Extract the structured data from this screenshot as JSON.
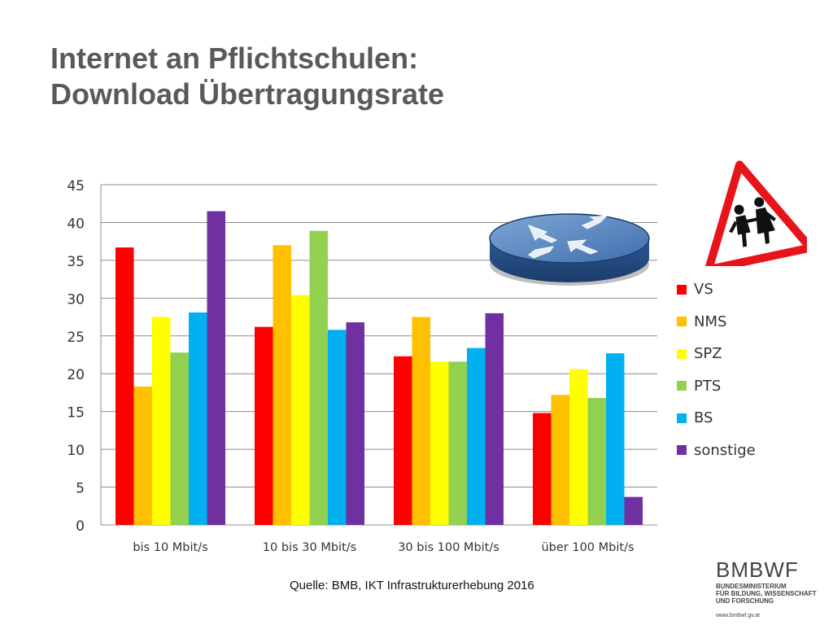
{
  "title": {
    "line1": "Internet an Pflichtschulen:",
    "line2": "Download Übertragungsrate"
  },
  "chart_data": {
    "type": "bar",
    "categories": [
      "bis 10 Mbit/s",
      "10 bis 30 Mbit/s",
      "30 bis 100 Mbit/s",
      "über 100 Mbit/s"
    ],
    "series": [
      {
        "name": "VS",
        "color": "#ff0000",
        "values": [
          36.7,
          26.2,
          22.3,
          14.8
        ]
      },
      {
        "name": "NMS",
        "color": "#ffc000",
        "values": [
          18.3,
          37.0,
          27.5,
          17.2
        ]
      },
      {
        "name": "SPZ",
        "color": "#ffff00",
        "values": [
          27.5,
          30.4,
          21.6,
          20.6
        ]
      },
      {
        "name": "PTS",
        "color": "#92d050",
        "values": [
          22.8,
          38.9,
          21.6,
          16.8
        ]
      },
      {
        "name": "BS",
        "color": "#00b0f0",
        "values": [
          28.1,
          25.8,
          23.4,
          22.7
        ]
      },
      {
        "name": "sonstige",
        "color": "#7030a0",
        "values": [
          41.5,
          26.8,
          28.0,
          3.7
        ]
      }
    ],
    "ylim": [
      0,
      45
    ],
    "yticks": [
      0,
      5,
      10,
      15,
      20,
      25,
      30,
      35,
      40,
      45
    ],
    "grid": true,
    "legend_position": "right",
    "xlabel": "",
    "ylabel": ""
  },
  "source": "Quelle: BMB, IKT Infrastrukturerhebung 2016",
  "logo": {
    "mark": "BMBWF",
    "lines": [
      "BUNDESMINISTERIUM",
      "FÜR BILDUNG, WISSENSCHAFT",
      "UND FORSCHUNG"
    ],
    "url": "www.bmbwf.gv.at"
  },
  "icons": [
    "router-icon",
    "school-children-sign-icon"
  ]
}
